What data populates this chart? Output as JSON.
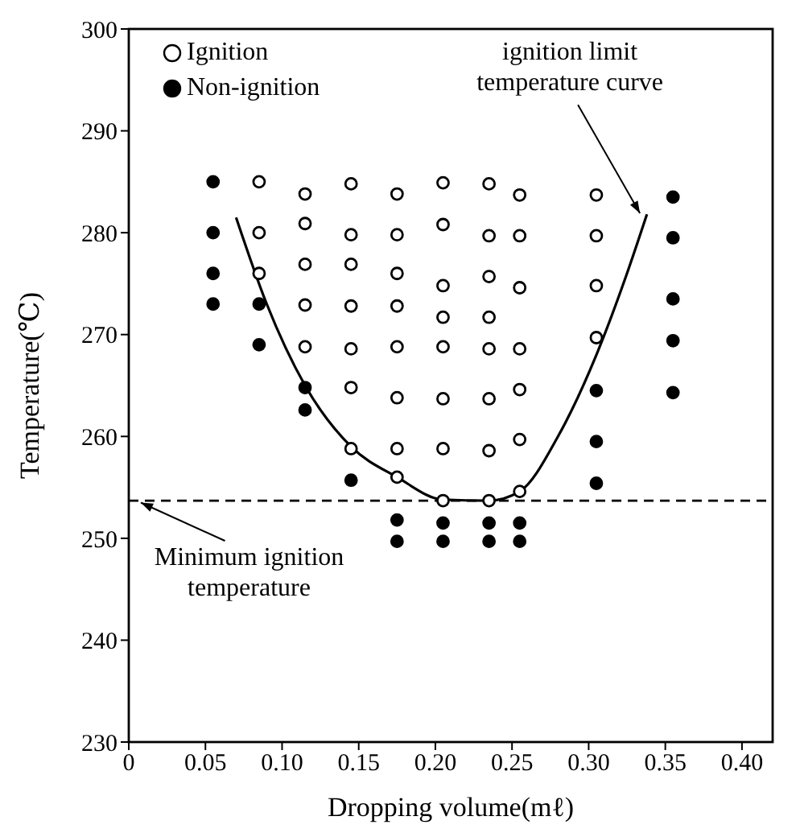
{
  "chart_data": {
    "type": "scatter",
    "xlabel": "Dropping volume(mℓ)",
    "ylabel": "Temperature(℃)",
    "xlim": [
      0,
      0.42
    ],
    "xticks": [
      0,
      0.05,
      {
        "value": 0.1,
        "label": "0.10"
      },
      0.15,
      {
        "value": 0.2,
        "label": "0.20"
      },
      0.25,
      {
        "value": 0.3,
        "label": "0.30"
      },
      0.35,
      {
        "value": 0.4,
        "label": "0.40"
      }
    ],
    "ylim": [
      230,
      300
    ],
    "yticks": [
      230,
      240,
      250,
      260,
      270,
      280,
      290,
      300
    ],
    "grid": false,
    "legend": "top left",
    "marker": "circle",
    "series": [
      {
        "name": "Ignition",
        "color": "#ffffff",
        "x": [
          0.085,
          0.085,
          0.085,
          0.115,
          0.115,
          0.115,
          0.115,
          0.115,
          0.145,
          0.145,
          0.145,
          0.145,
          0.145,
          0.145,
          0.145,
          0.175,
          0.175,
          0.175,
          0.175,
          0.175,
          0.175,
          0.175,
          0.175,
          0.205,
          0.205,
          0.205,
          0.205,
          0.205,
          0.205,
          0.205,
          0.205,
          0.235,
          0.235,
          0.235,
          0.235,
          0.235,
          0.235,
          0.235,
          0.235,
          0.255,
          0.255,
          0.255,
          0.255,
          0.255,
          0.255,
          0.255,
          0.305,
          0.305,
          0.305,
          0.305
        ],
        "values": [
          285,
          280,
          276,
          283.8,
          280.9,
          276.9,
          272.9,
          268.8,
          284.8,
          279.8,
          276.9,
          272.8,
          268.6,
          264.8,
          258.8,
          283.8,
          279.8,
          276,
          272.8,
          268.8,
          263.8,
          258.8,
          256,
          284.9,
          280.8,
          274.8,
          271.7,
          268.8,
          263.7,
          258.8,
          253.7,
          284.8,
          279.7,
          275.7,
          271.7,
          268.6,
          263.7,
          258.6,
          253.7,
          283.7,
          279.7,
          274.6,
          268.6,
          264.6,
          259.7,
          254.6,
          283.7,
          279.7,
          274.8,
          269.7
        ]
      },
      {
        "name": "Non-ignition",
        "color": "#000000",
        "x": [
          0.055,
          0.055,
          0.055,
          0.055,
          0.085,
          0.085,
          0.115,
          0.115,
          0.145,
          0.175,
          0.175,
          0.205,
          0.205,
          0.235,
          0.235,
          0.255,
          0.255,
          0.305,
          0.305,
          0.305,
          0.355,
          0.355,
          0.355,
          0.355,
          0.355
        ],
        "values": [
          285,
          280,
          276,
          273,
          273,
          269,
          264.8,
          262.6,
          255.7,
          251.8,
          249.7,
          251.5,
          249.7,
          251.5,
          249.7,
          251.5,
          249.7,
          264.5,
          259.5,
          255.4,
          283.5,
          279.5,
          273.5,
          269.4,
          264.3
        ]
      },
      {
        "type": "line",
        "color": "#000000",
        "marker": "none",
        "line_style": "solid",
        "x": [
          0.07,
          0.09,
          0.115,
          0.145,
          0.175,
          0.205,
          0.235,
          0.255,
          0.28,
          0.305,
          0.325,
          0.338
        ],
        "values": [
          281.5,
          273,
          265,
          259,
          256,
          253.8,
          253.7,
          254.6,
          260,
          268,
          276,
          281.8
        ]
      }
    ],
    "ref_lines": [
      {
        "axis": "y",
        "value": 253.7,
        "color": "#000000",
        "line_style": "dashed"
      }
    ],
    "annotations": [
      {
        "text": "ignition limit temperature curve",
        "x": 0.335,
        "y": 281.5
      },
      {
        "text": "Minimum ignition temperature",
        "x": 0.005,
        "y": 253.7
      }
    ]
  }
}
